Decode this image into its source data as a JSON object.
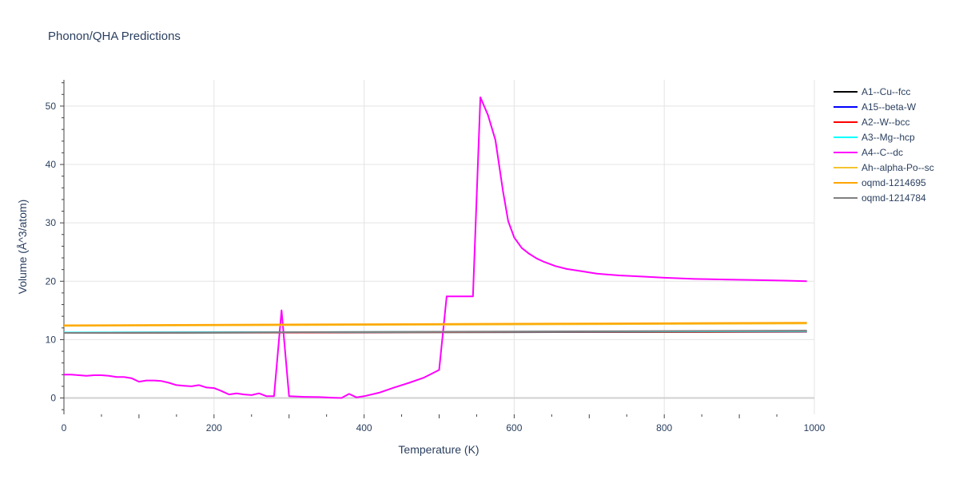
{
  "chart_data": {
    "type": "line",
    "title": "Phonon/QHA Predictions",
    "xlabel": "Temperature (K)",
    "ylabel": "Volume (Å^3/atom)",
    "xlim": [
      0,
      1000
    ],
    "ylim": [
      -2.8,
      54.5
    ],
    "x_ticks": [
      0,
      200,
      400,
      600,
      800,
      1000
    ],
    "y_ticks": [
      0,
      10,
      20,
      30,
      40,
      50
    ],
    "grid": true,
    "legend_position": "top-right",
    "series": [
      {
        "name": "A1--Cu--fcc",
        "color": "#000000",
        "x": [
          0,
          990
        ],
        "y": [
          11.15,
          11.35
        ]
      },
      {
        "name": "A15--beta-W",
        "color": "#0000ff",
        "x": [
          0,
          990
        ],
        "y": [
          11.2,
          11.4
        ]
      },
      {
        "name": "A2--W--bcc",
        "color": "#ff0000",
        "x": [
          0,
          990
        ],
        "y": [
          11.18,
          11.38
        ]
      },
      {
        "name": "A3--Mg--hcp",
        "color": "#00ffff",
        "x": [
          0,
          990
        ],
        "y": [
          11.22,
          11.45
        ]
      },
      {
        "name": "A4--C--dc",
        "color": "#ff00ff",
        "x": [
          0,
          10,
          20,
          30,
          40,
          50,
          60,
          70,
          80,
          90,
          100,
          110,
          120,
          130,
          140,
          150,
          160,
          170,
          180,
          190,
          200,
          210,
          220,
          230,
          240,
          250,
          260,
          270,
          280,
          290,
          300,
          320,
          340,
          360,
          370,
          380,
          390,
          400,
          420,
          440,
          460,
          480,
          500,
          510,
          520,
          530,
          545,
          555,
          565,
          575,
          585,
          592,
          600,
          610,
          620,
          630,
          640,
          655,
          670,
          690,
          710,
          740,
          770,
          800,
          840,
          880,
          920,
          960,
          990
        ],
        "y": [
          4.0,
          4.0,
          3.9,
          3.8,
          3.9,
          3.9,
          3.8,
          3.6,
          3.6,
          3.4,
          2.8,
          3.0,
          3.0,
          2.9,
          2.6,
          2.2,
          2.1,
          2.0,
          2.2,
          1.8,
          1.7,
          1.2,
          0.6,
          0.8,
          0.6,
          0.5,
          0.8,
          0.3,
          0.3,
          15.0,
          0.3,
          0.2,
          0.15,
          0.05,
          0.0,
          0.7,
          0.1,
          0.3,
          0.9,
          1.8,
          2.6,
          3.5,
          4.8,
          17.4,
          17.4,
          17.4,
          17.4,
          51.5,
          48.5,
          44.2,
          35.5,
          30.3,
          27.5,
          25.7,
          24.7,
          23.9,
          23.3,
          22.6,
          22.1,
          21.7,
          21.3,
          21.0,
          20.8,
          20.6,
          20.4,
          20.3,
          20.2,
          20.1,
          20.0
        ]
      },
      {
        "name": "Ah--alpha-Po--sc",
        "color": "#f4c430",
        "x": [
          0,
          990
        ],
        "y": [
          12.35,
          12.75
        ]
      },
      {
        "name": "oqmd-1214695",
        "color": "#ffa500",
        "x": [
          0,
          990
        ],
        "y": [
          12.45,
          12.9
        ]
      },
      {
        "name": "oqmd-1214784",
        "color": "#808080",
        "x": [
          0,
          990
        ],
        "y": [
          11.15,
          11.55
        ]
      }
    ]
  }
}
